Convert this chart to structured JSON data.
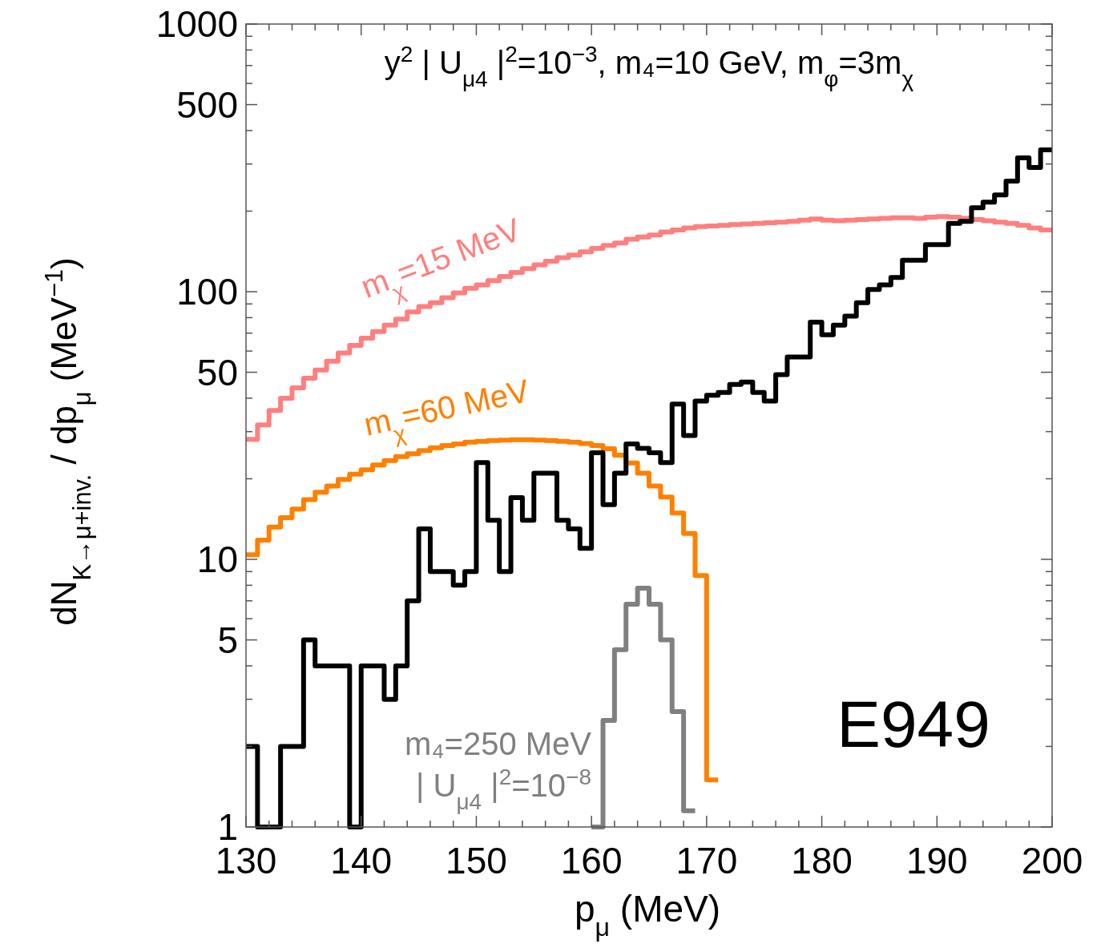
{
  "chart_data": {
    "type": "step",
    "title": "y$^{2}$ | U$_{μ4}$ |$^{2}$=10$^{−3}$, m₄=10 GeV, m$_{φ}$=3m$_{χ}$",
    "xlabel": "p$_{μ}$ (MeV)",
    "ylabel": "dN$_{K→μ+inv.}$ / dp$_{μ}$ (MeV$^{−1}$)",
    "log": "y",
    "xlim": [
      130,
      200
    ],
    "ylim": [
      1,
      1000
    ],
    "xticks": [
      130,
      {
        "value": 132,
        "label": null
      },
      {
        "value": 134,
        "label": null
      },
      {
        "value": 136,
        "label": null
      },
      {
        "value": 138,
        "label": null
      },
      140,
      {
        "value": 142,
        "label": null
      },
      {
        "value": 144,
        "label": null
      },
      {
        "value": 146,
        "label": null
      },
      {
        "value": 148,
        "label": null
      },
      150,
      {
        "value": 152,
        "label": null
      },
      {
        "value": 154,
        "label": null
      },
      {
        "value": 156,
        "label": null
      },
      {
        "value": 158,
        "label": null
      },
      160,
      {
        "value": 162,
        "label": null
      },
      {
        "value": 164,
        "label": null
      },
      {
        "value": 166,
        "label": null
      },
      {
        "value": 168,
        "label": null
      },
      170,
      {
        "value": 172,
        "label": null
      },
      {
        "value": 174,
        "label": null
      },
      {
        "value": 176,
        "label": null
      },
      {
        "value": 178,
        "label": null
      },
      180,
      {
        "value": 182,
        "label": null
      },
      {
        "value": 184,
        "label": null
      },
      {
        "value": 186,
        "label": null
      },
      {
        "value": 188,
        "label": null
      },
      190,
      {
        "value": 192,
        "label": null
      },
      {
        "value": 194,
        "label": null
      },
      {
        "value": 196,
        "label": null
      },
      {
        "value": 198,
        "label": null
      },
      200
    ],
    "yticks": [
      1,
      {
        "value": 2,
        "label": null
      },
      {
        "value": 3,
        "label": null
      },
      {
        "value": 4,
        "label": null
      },
      5,
      {
        "value": 6,
        "label": null
      },
      {
        "value": 7,
        "label": null
      },
      {
        "value": 8,
        "label": null
      },
      {
        "value": 9,
        "label": null
      },
      10,
      {
        "value": 20,
        "label": null
      },
      {
        "value": 30,
        "label": null
      },
      {
        "value": 40,
        "label": null
      },
      50,
      {
        "value": 60,
        "label": null
      },
      {
        "value": 70,
        "label": null
      },
      {
        "value": 80,
        "label": null
      },
      {
        "value": 90,
        "label": null
      },
      100,
      {
        "value": 200,
        "label": null
      },
      {
        "value": 300,
        "label": null
      },
      {
        "value": 400,
        "label": null
      },
      500,
      {
        "value": 600,
        "label": null
      },
      {
        "value": 700,
        "label": null
      },
      {
        "value": 800,
        "label": null
      },
      {
        "value": 900,
        "label": null
      },
      1000
    ],
    "series": [
      {
        "name": "m$_{χ}$=15 MeV",
        "color": "#ff7f7f",
        "x": [
          130,
          131,
          132,
          133,
          134,
          135,
          136,
          137,
          138,
          139,
          140,
          141,
          142,
          143,
          144,
          145,
          146,
          147,
          148,
          149,
          150,
          151,
          152,
          153,
          154,
          155,
          156,
          157,
          158,
          159,
          160,
          161,
          162,
          163,
          164,
          165,
          166,
          167,
          168,
          169,
          170,
          171,
          172,
          173,
          174,
          175,
          176,
          177,
          178,
          179,
          180,
          181,
          182,
          183,
          184,
          185,
          186,
          187,
          188,
          189,
          190,
          191,
          192,
          193,
          194,
          195,
          196,
          197,
          198,
          199,
          200
        ],
        "values": [
          28.1,
          31.8,
          36,
          40,
          43.7,
          47.5,
          51,
          55,
          59,
          63,
          67,
          71,
          75,
          79,
          84,
          88,
          91,
          95,
          99,
          103,
          106,
          110,
          114,
          118,
          122,
          126,
          130,
          134,
          137,
          141,
          145,
          149,
          152,
          157,
          160,
          163,
          167,
          170,
          173,
          175,
          176,
          177,
          178,
          179,
          180,
          181,
          182,
          183,
          185,
          187,
          185,
          184,
          185,
          186,
          187,
          188,
          189,
          189,
          188,
          190,
          191,
          190,
          188,
          186,
          184,
          182,
          180,
          177,
          173,
          170,
          170
        ]
      },
      {
        "name": "m$_{χ}$=60 MeV",
        "color": "#ff8000",
        "x": [
          130,
          131,
          132,
          133,
          134,
          135,
          136,
          137,
          138,
          139,
          140,
          141,
          142,
          143,
          144,
          145,
          146,
          147,
          148,
          149,
          150,
          151,
          152,
          153,
          154,
          155,
          156,
          157,
          158,
          159,
          160,
          161,
          162,
          163,
          164,
          165,
          166,
          167,
          168,
          169,
          170,
          171
        ],
        "values": [
          10.4,
          11.8,
          13.2,
          14.3,
          15.4,
          16.7,
          17.8,
          18.8,
          19.9,
          20.8,
          21.6,
          22.5,
          23.4,
          24.2,
          24.8,
          25.5,
          26.1,
          26.6,
          27,
          27.4,
          27.6,
          27.8,
          27.9,
          28,
          28,
          27.9,
          27.8,
          27.6,
          27.4,
          27.1,
          26.6,
          25.9,
          24.5,
          22.9,
          21,
          18.8,
          17.1,
          14.9,
          12.5,
          8.7,
          1.5,
          1.5
        ]
      },
      {
        "name": "m₄=250 MeV\n| U$_{μ4}$ |$^{2}$=10$^{−8}$",
        "color": "#808080",
        "x": [
          160,
          161,
          162,
          163,
          164,
          165,
          166,
          167,
          168,
          169
        ],
        "values": [
          1,
          2.5,
          4.6,
          6.8,
          7.8,
          6.8,
          5,
          2.7,
          1.15,
          1.15
        ]
      },
      {
        "name": "E949",
        "color": "#000000",
        "x": [
          130,
          131,
          132,
          133,
          134,
          135,
          136,
          137,
          138,
          139,
          140,
          141,
          142,
          143,
          144,
          145,
          146,
          147,
          148,
          149,
          150,
          151,
          152,
          153,
          154,
          155,
          156,
          157,
          158,
          159,
          160,
          161,
          162,
          163,
          164,
          165,
          166,
          167,
          168,
          169,
          170,
          171,
          172,
          173,
          174,
          175,
          176,
          177,
          178,
          179,
          180,
          181,
          182,
          183,
          184,
          185,
          186,
          187,
          188,
          189,
          190,
          191,
          192,
          193,
          194,
          195,
          196,
          197,
          198,
          199,
          200
        ],
        "values": [
          2,
          1,
          1,
          2,
          2,
          5,
          4,
          4,
          4,
          1,
          4,
          4,
          3,
          4,
          7,
          13,
          9,
          9,
          8,
          9,
          23,
          14,
          9,
          17,
          14,
          21,
          21,
          14,
          13,
          11,
          25,
          16,
          21,
          27,
          26,
          25,
          23,
          38,
          29,
          39,
          41,
          42,
          45,
          46,
          42,
          39,
          49,
          57,
          57,
          77,
          69,
          75,
          81,
          91,
          102,
          106,
          113,
          131,
          131,
          150,
          150,
          180,
          183,
          206,
          216,
          230,
          259,
          316,
          291,
          339,
          339
        ]
      }
    ]
  }
}
